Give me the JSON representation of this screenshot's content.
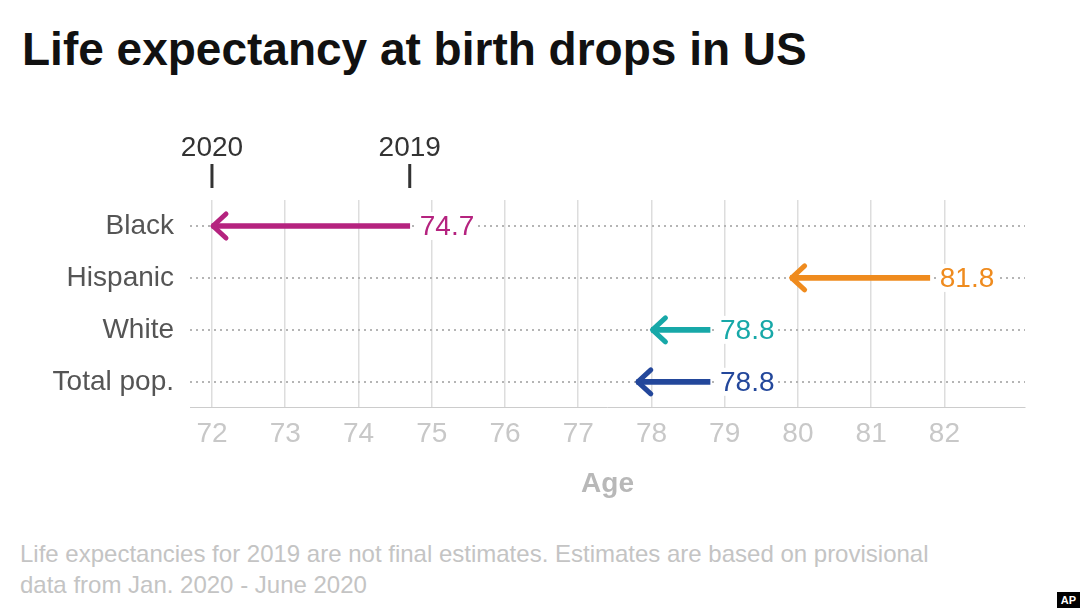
{
  "chart_data": {
    "type": "arrow",
    "title": "Life expectancy at birth drops in US",
    "categories": [
      "Black",
      "Hispanic",
      "White",
      "Total pop."
    ],
    "series": [
      {
        "name": "2019",
        "values": [
          74.7,
          81.8,
          78.8,
          78.8
        ],
        "data_labels": true
      },
      {
        "name": "2020",
        "values": [
          72.0,
          79.9,
          78.0,
          77.8
        ]
      }
    ],
    "colors": [
      "#b5237f",
      "#ef8b1e",
      "#17a8a8",
      "#23479b"
    ],
    "orientation": "horizontal",
    "xlabel": "Age",
    "xlim": [
      71.7,
      83.1
    ],
    "xticks": [
      72,
      73,
      74,
      75,
      76,
      77,
      78,
      79,
      80,
      81,
      82
    ],
    "grid": true,
    "note": "Life expectancies for 2019 are not final estimates. Estimates are based on provisional data from Jan. 2020 - June 2020",
    "logo": "AP"
  }
}
